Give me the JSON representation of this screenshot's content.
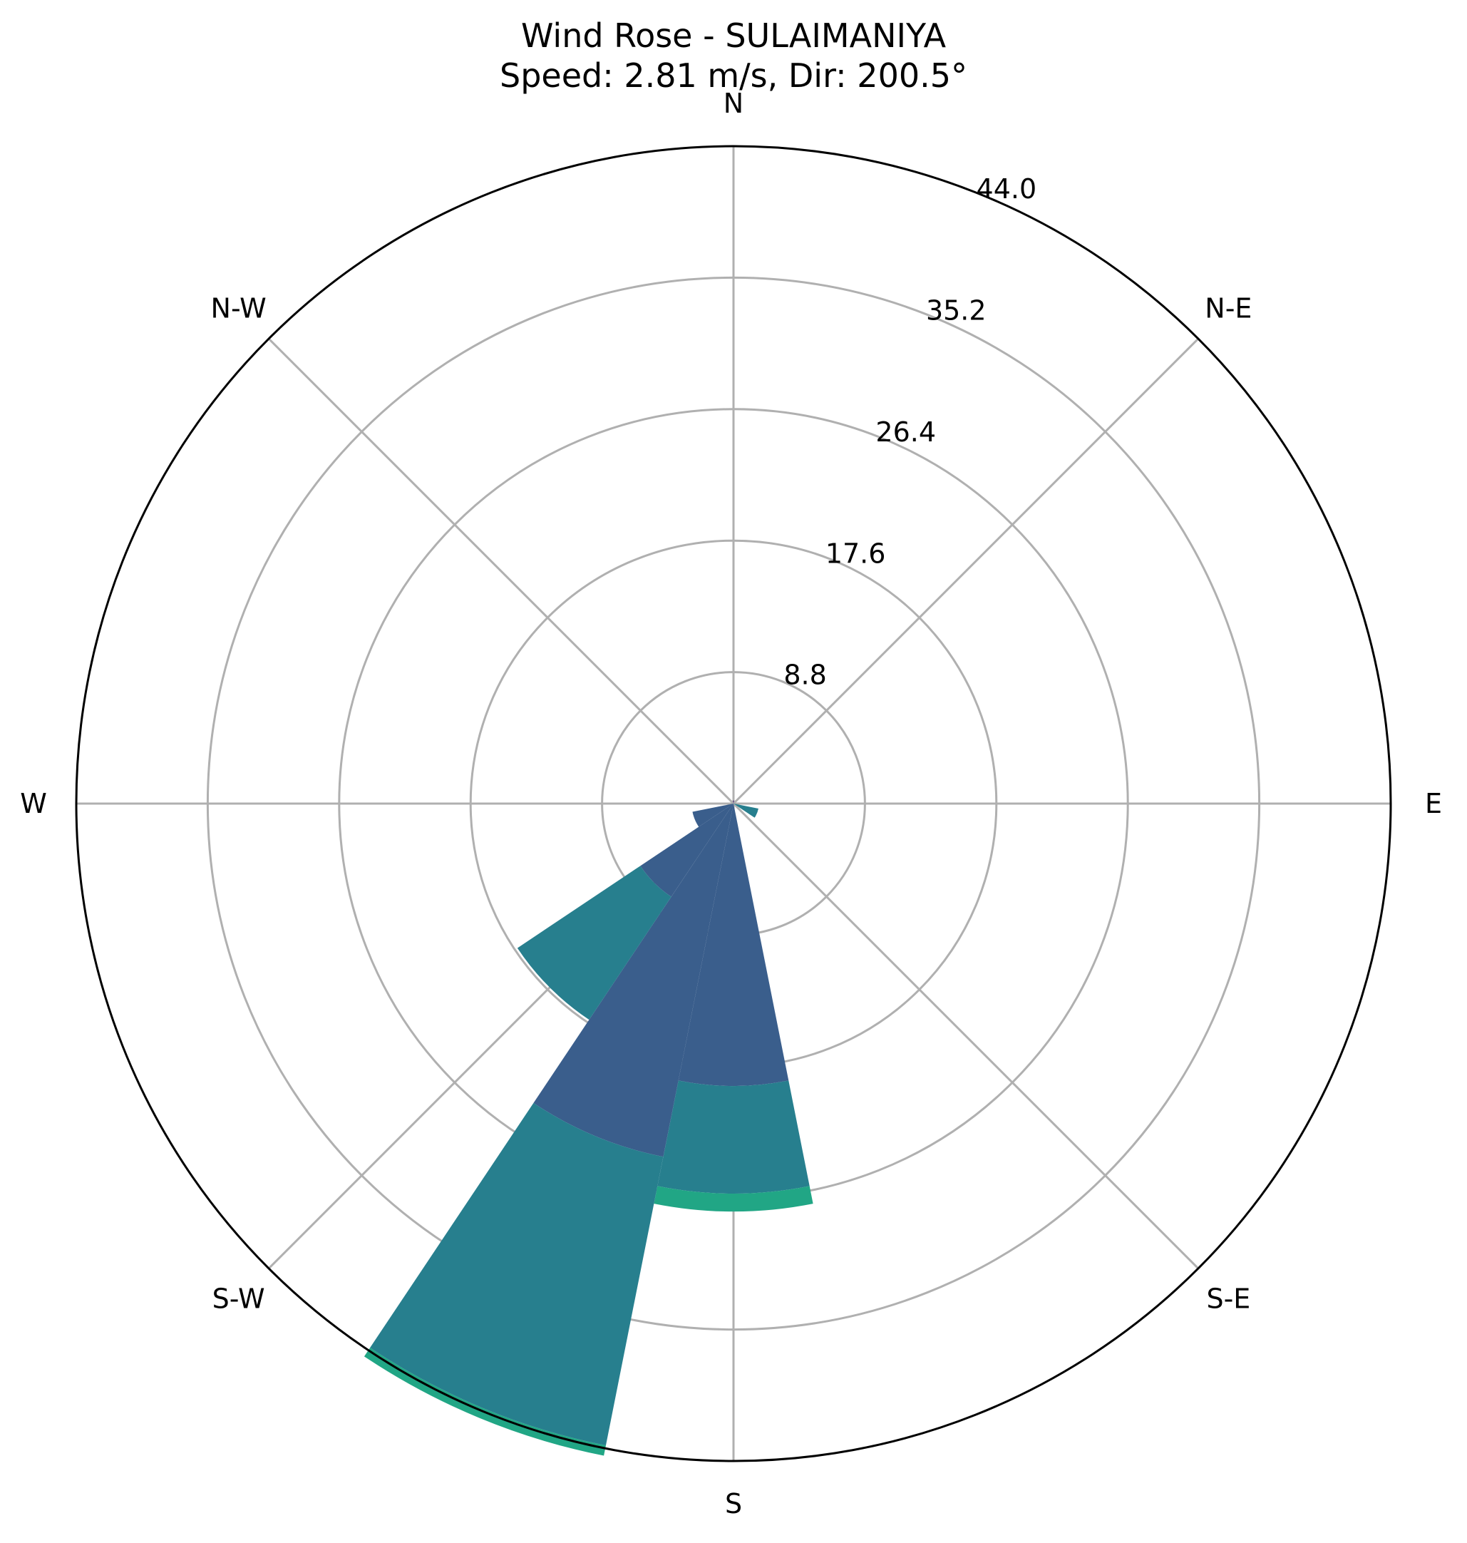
{
  "chart_data": {
    "type": "wind-rose",
    "title": "Wind Rose - SULAIMANIYA",
    "subtitle": "Speed: 2.81 m/s, Dir: 200.5°",
    "directions": [
      "N",
      "N-E",
      "E",
      "S-E",
      "S",
      "S-W",
      "W",
      "N-W"
    ],
    "radial_ticks": [
      "8.8",
      "17.6",
      "26.4",
      "35.2",
      "44.0"
    ],
    "rmax": 44.0,
    "theta_zero": "N",
    "theta_direction": "clockwise",
    "bin_width_deg": 22.5,
    "colors": {
      "band_1": "#3a5e8c",
      "band_2": "#277f8e",
      "band_3": "#21a685",
      "band_0": "#482878",
      "grid": "#b0b0b0"
    },
    "sectors": [
      {
        "direction_deg": 0,
        "segments": [
          0.2
        ]
      },
      {
        "direction_deg": 112.5,
        "segments": [
          0.0,
          1.7
        ]
      },
      {
        "direction_deg": 180,
        "segments": [
          18.9,
          7.2,
          1.2
        ]
      },
      {
        "direction_deg": 202.5,
        "segments": [
          24.1,
          19.7,
          0.7
        ]
      },
      {
        "direction_deg": 225,
        "segments": [
          7.5,
          9.9
        ]
      },
      {
        "direction_deg": 247.5,
        "segments": [
          2.8
        ]
      }
    ]
  }
}
